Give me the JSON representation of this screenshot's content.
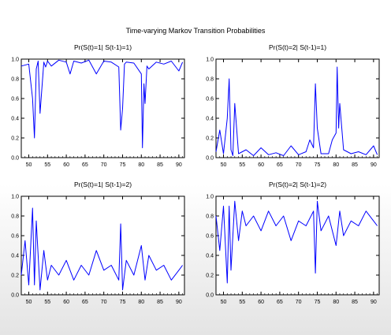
{
  "figure_title": "Time-varying Markov Transition Probabilities",
  "colors": {
    "line": "#0000ff",
    "axis": "#000000",
    "background": "#ffffff"
  },
  "chart_data": [
    {
      "type": "line",
      "title": "Pr(S(t)=1| S(t-1)=1)",
      "xlabel": "",
      "ylabel": "",
      "xlim": [
        1948,
        1991.5
      ],
      "ylim": [
        0,
        1
      ],
      "xticks": [
        "50",
        "55",
        "60",
        "65",
        "70",
        "75",
        "80",
        "85",
        "90"
      ],
      "yticks": [
        "0.0",
        "0.2",
        "0.4",
        "0.6",
        "0.8",
        "1.0"
      ],
      "x": [
        1948,
        1950,
        1951,
        1951.5,
        1952,
        1952.5,
        1953,
        1954,
        1954.5,
        1955,
        1956,
        1958,
        1960,
        1961,
        1962,
        1964,
        1966,
        1968,
        1970,
        1972,
        1974,
        1974.5,
        1975,
        1975.5,
        1976,
        1978,
        1980,
        1980.3,
        1980.7,
        1981,
        1981.5,
        1982,
        1984,
        1986,
        1988,
        1990,
        1991
      ],
      "series": [
        {
          "values": [
            0.93,
            0.95,
            0.6,
            0.2,
            0.9,
            0.98,
            0.45,
            0.97,
            0.92,
            0.98,
            0.93,
            0.99,
            0.97,
            0.85,
            0.98,
            0.96,
            0.99,
            0.85,
            0.98,
            0.97,
            0.92,
            0.28,
            0.5,
            0.95,
            0.97,
            0.96,
            0.85,
            0.1,
            0.75,
            0.55,
            0.93,
            0.9,
            0.97,
            0.95,
            0.98,
            0.88,
            0.97
          ]
        }
      ]
    },
    {
      "type": "line",
      "title": "Pr(S(t)=2| S(t-1)=1)",
      "xlabel": "",
      "ylabel": "",
      "xlim": [
        1948,
        1991.5
      ],
      "ylim": [
        0,
        1
      ],
      "xticks": [
        "50",
        "55",
        "60",
        "65",
        "70",
        "75",
        "80",
        "85",
        "90"
      ],
      "yticks": [
        "0.0",
        "0.2",
        "0.4",
        "0.6",
        "0.8",
        "1.0"
      ],
      "x": [
        1948,
        1949,
        1950,
        1951,
        1951.5,
        1952,
        1952.5,
        1953,
        1954,
        1956,
        1958,
        1960,
        1962,
        1964,
        1966,
        1968,
        1970,
        1972,
        1973,
        1974,
        1974.5,
        1975,
        1976,
        1978,
        1979,
        1980,
        1980.3,
        1980.7,
        1981,
        1982,
        1984,
        1986,
        1988,
        1990,
        1991
      ],
      "series": [
        {
          "values": [
            0.06,
            0.28,
            0.04,
            0.4,
            0.8,
            0.08,
            0.02,
            0.55,
            0.04,
            0.08,
            0.02,
            0.1,
            0.03,
            0.05,
            0.02,
            0.12,
            0.03,
            0.06,
            0.18,
            0.1,
            0.75,
            0.3,
            0.04,
            0.04,
            0.18,
            0.25,
            0.92,
            0.3,
            0.55,
            0.08,
            0.04,
            0.06,
            0.03,
            0.12,
            0.03
          ]
        }
      ]
    },
    {
      "type": "line",
      "title": "Pr(S(t)=1| S(t-1)=2)",
      "xlabel": "",
      "ylabel": "",
      "xlim": [
        1948,
        1991.5
      ],
      "ylim": [
        0,
        1
      ],
      "xticks": [
        "50",
        "55",
        "60",
        "65",
        "70",
        "75",
        "80",
        "85",
        "90"
      ],
      "yticks": [
        "0.0",
        "0.2",
        "0.4",
        "0.6",
        "0.8",
        "1.0"
      ],
      "x": [
        1948,
        1949,
        1950,
        1951,
        1951.5,
        1952,
        1953,
        1954,
        1955,
        1956,
        1958,
        1960,
        1962,
        1964,
        1966,
        1968,
        1970,
        1972,
        1974,
        1974.5,
        1975,
        1976,
        1978,
        1980,
        1981,
        1982,
        1984,
        1986,
        1988,
        1990,
        1991
      ],
      "series": [
        {
          "values": [
            0.2,
            0.55,
            0.1,
            0.88,
            0.1,
            0.75,
            0.05,
            0.45,
            0.15,
            0.3,
            0.2,
            0.35,
            0.15,
            0.3,
            0.2,
            0.45,
            0.25,
            0.3,
            0.15,
            0.72,
            0.05,
            0.35,
            0.2,
            0.5,
            0.15,
            0.4,
            0.25,
            0.3,
            0.15,
            0.25,
            0.3
          ]
        }
      ]
    },
    {
      "type": "line",
      "title": "Pr(S(t)=2| S(t-1)=2)",
      "xlabel": "",
      "ylabel": "",
      "xlim": [
        1948,
        1991.5
      ],
      "ylim": [
        0,
        1
      ],
      "xticks": [
        "50",
        "55",
        "60",
        "65",
        "70",
        "75",
        "80",
        "85",
        "90"
      ],
      "yticks": [
        "0.0",
        "0.2",
        "0.4",
        "0.6",
        "0.8",
        "1.0"
      ],
      "x": [
        1948,
        1949,
        1950,
        1951,
        1951.5,
        1952,
        1953,
        1954,
        1955,
        1956,
        1958,
        1960,
        1962,
        1964,
        1966,
        1968,
        1970,
        1972,
        1974,
        1974.5,
        1975,
        1976,
        1978,
        1980,
        1981,
        1982,
        1984,
        1986,
        1988,
        1990,
        1991
      ],
      "series": [
        {
          "values": [
            0.8,
            0.45,
            0.9,
            0.12,
            0.9,
            0.25,
            0.95,
            0.55,
            0.85,
            0.7,
            0.8,
            0.65,
            0.85,
            0.7,
            0.8,
            0.55,
            0.75,
            0.7,
            0.85,
            0.22,
            0.95,
            0.65,
            0.8,
            0.5,
            0.85,
            0.6,
            0.75,
            0.7,
            0.85,
            0.75,
            0.7
          ]
        }
      ]
    }
  ]
}
